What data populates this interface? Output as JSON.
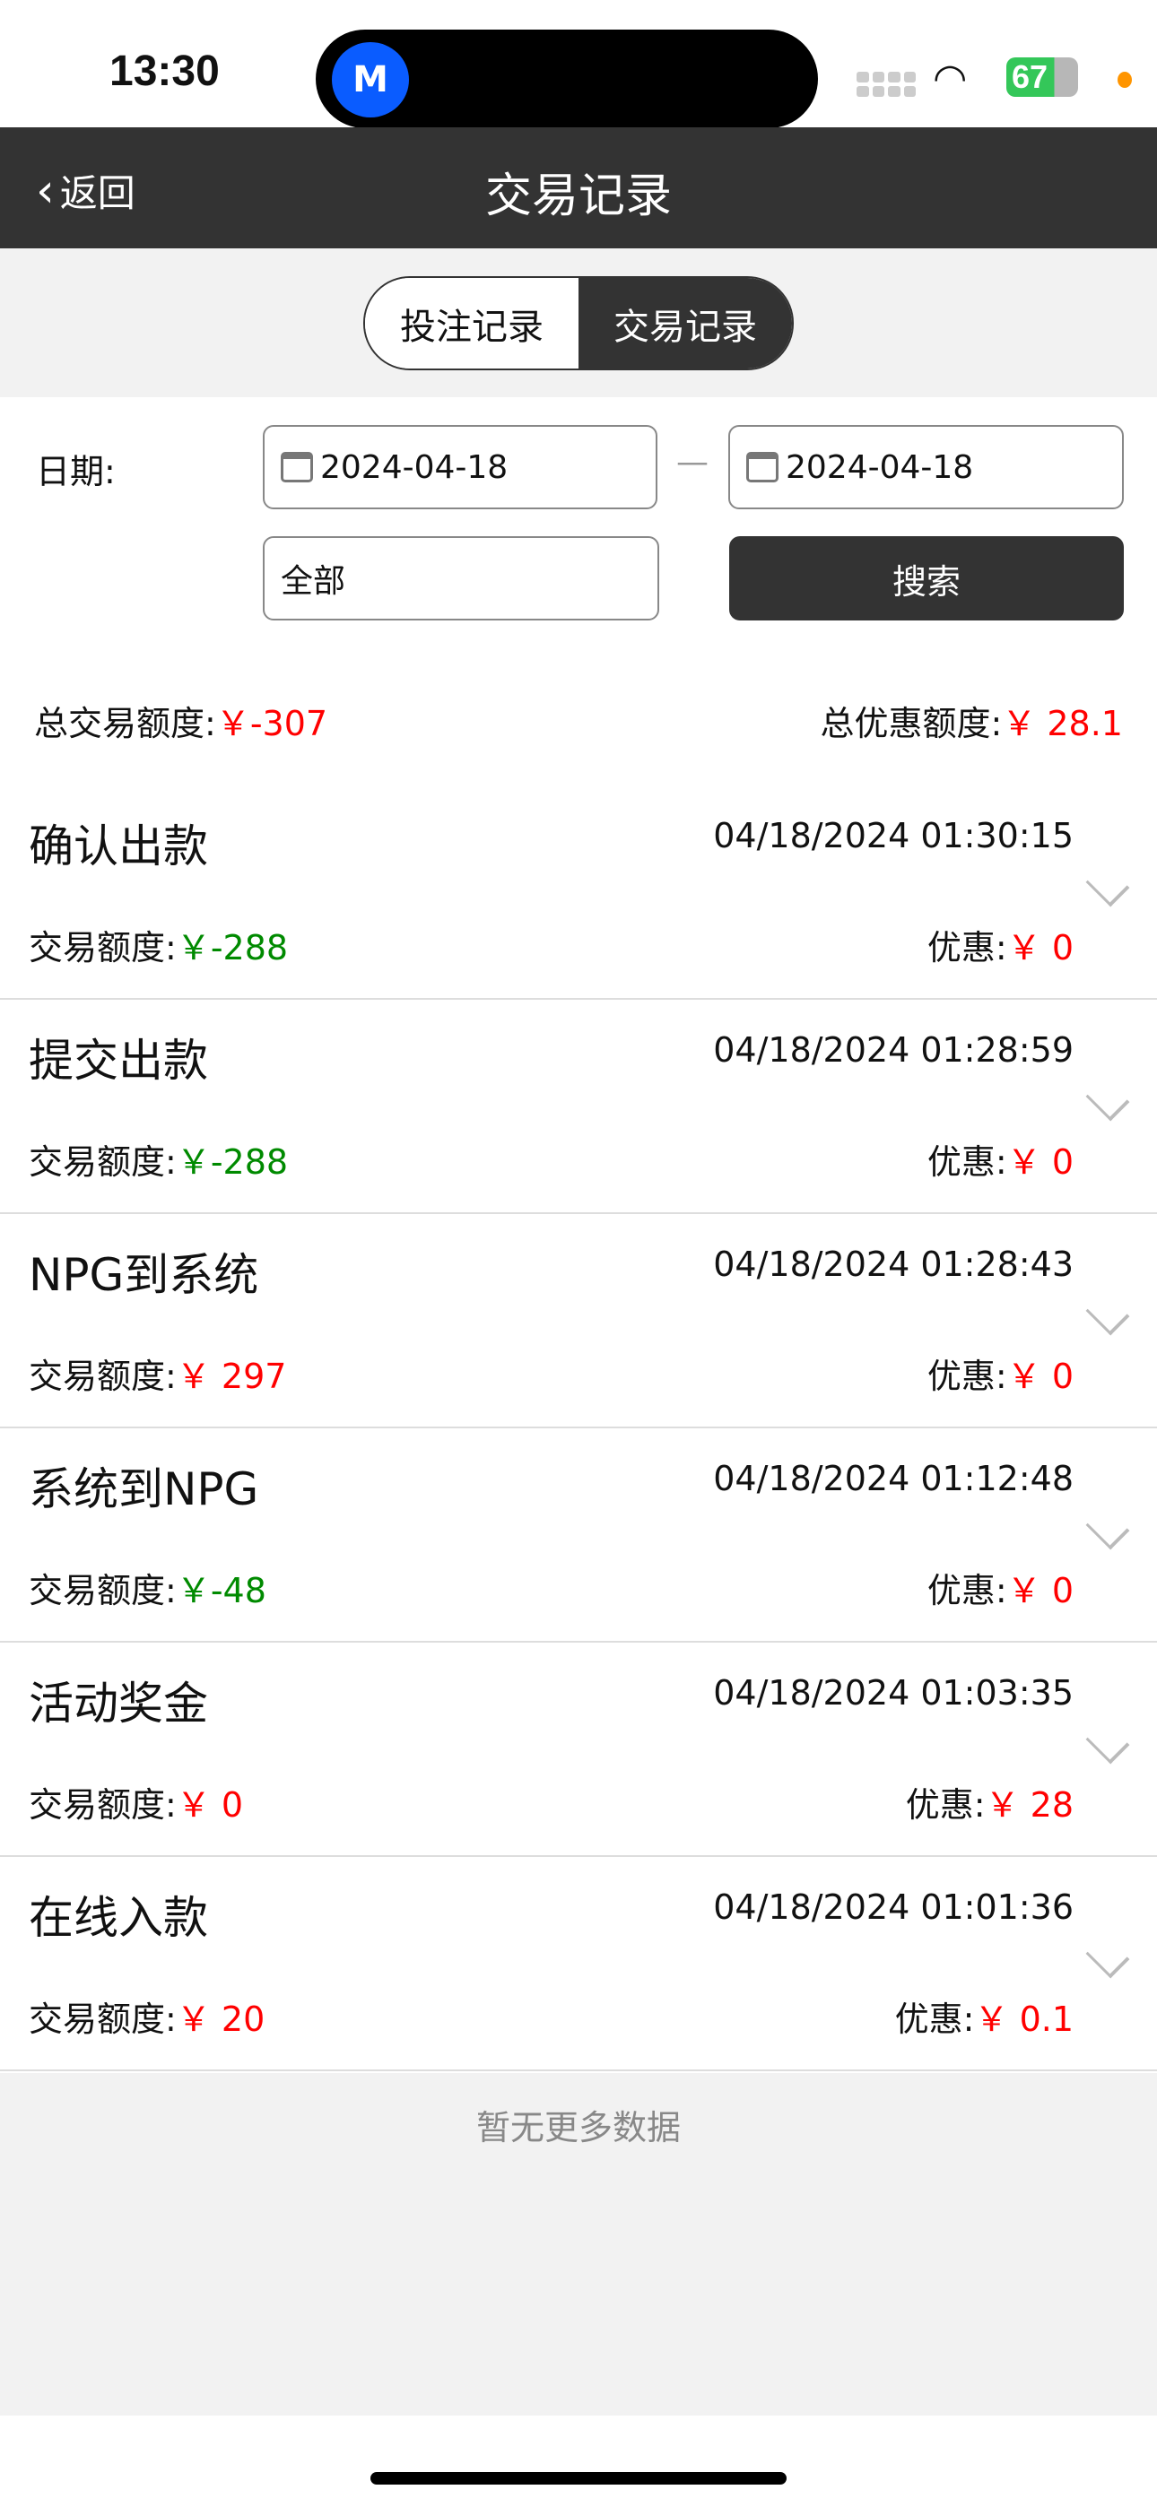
{
  "status_bar": {
    "time": "13:30",
    "battery": "67",
    "app_icon": "app-logo-icon"
  },
  "nav": {
    "back_label": "返回",
    "title": "交易记录"
  },
  "segment": {
    "tabs": [
      {
        "label": "投注记录",
        "active": false
      },
      {
        "label": "交易记录",
        "active": true
      }
    ]
  },
  "filter": {
    "date_label": "日期:",
    "start_date": "2024-04-18",
    "end_date": "2024-04-18",
    "separator": "—",
    "type_value": "全部",
    "search_label": "搜索"
  },
  "summary": {
    "total_label": "总交易额度:",
    "total_value": "￥-307",
    "bonus_label": "总优惠额度:",
    "bonus_value": "￥ 28.1"
  },
  "records": [
    {
      "title": "确认出款",
      "datetime": "04/18/2024 01:30:15",
      "amount_label": "交易额度:",
      "amount": "￥-288",
      "amount_color": "green",
      "bonus_label": "优惠:",
      "bonus": "￥ 0"
    },
    {
      "title": "提交出款",
      "datetime": "04/18/2024 01:28:59",
      "amount_label": "交易额度:",
      "amount": "￥-288",
      "amount_color": "green",
      "bonus_label": "优惠:",
      "bonus": "￥ 0"
    },
    {
      "title": "NPG到系统",
      "datetime": "04/18/2024 01:28:43",
      "amount_label": "交易额度:",
      "amount": "￥ 297",
      "amount_color": "red",
      "bonus_label": "优惠:",
      "bonus": "￥ 0"
    },
    {
      "title": "系统到NPG",
      "datetime": "04/18/2024 01:12:48",
      "amount_label": "交易额度:",
      "amount": "￥-48",
      "amount_color": "green",
      "bonus_label": "优惠:",
      "bonus": "￥ 0"
    },
    {
      "title": "活动奖金",
      "datetime": "04/18/2024 01:03:35",
      "amount_label": "交易额度:",
      "amount": "￥ 0",
      "amount_color": "red",
      "bonus_label": "优惠:",
      "bonus": "￥ 28"
    },
    {
      "title": "在线入款",
      "datetime": "04/18/2024 01:01:36",
      "amount_label": "交易额度:",
      "amount": "￥ 20",
      "amount_color": "red",
      "bonus_label": "优惠:",
      "bonus": "￥ 0.1"
    }
  ],
  "footer": {
    "no_more": "暂无更多数据"
  },
  "colors": {
    "nav_bg": "#333333",
    "negative": "#008a00",
    "positive": "#ff0000"
  }
}
